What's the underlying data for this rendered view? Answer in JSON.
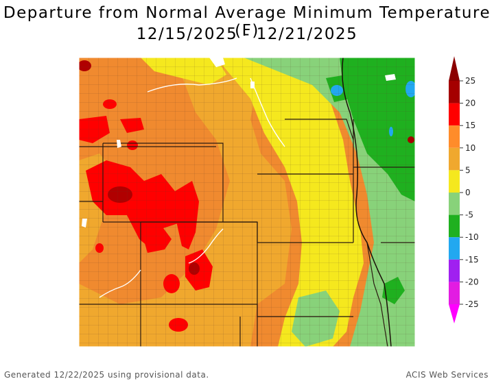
{
  "title": {
    "line1": "Departure from Normal Average Minimum Temperature (F)",
    "line2": "12/15/2025 - 12/21/2025"
  },
  "legend": {
    "ticks": [
      "25",
      "20",
      "15",
      "10",
      "5",
      "0",
      "-5",
      "-10",
      "-15",
      "-20",
      "-25"
    ],
    "colors": [
      "#a50000",
      "#ff0000",
      "#ff8c2a",
      "#f0a82e",
      "#f5e81e",
      "#88d27a",
      "#1fb01f",
      "#22a8f0",
      "#a020f0",
      "#e21ce2"
    ],
    "top_arrow_color": "#8b0000",
    "bottom_arrow_color": "#ff00ff"
  },
  "map": {
    "region": "Northern and Central Plains",
    "colors": {
      "warm_strong": "#ff0000",
      "warm_very_strong": "#b00000",
      "warm": "#f08a2f",
      "warm_mild": "#f0a82e",
      "near_normal_warm": "#f5e81e",
      "near_normal_cool": "#88d27a",
      "cool": "#1fb01f",
      "cold": "#22a8f0",
      "boundary": "#3a2418"
    }
  },
  "footer": {
    "generated": "Generated 12/22/2025 using provisional data.",
    "credit": "ACIS Web Services"
  }
}
